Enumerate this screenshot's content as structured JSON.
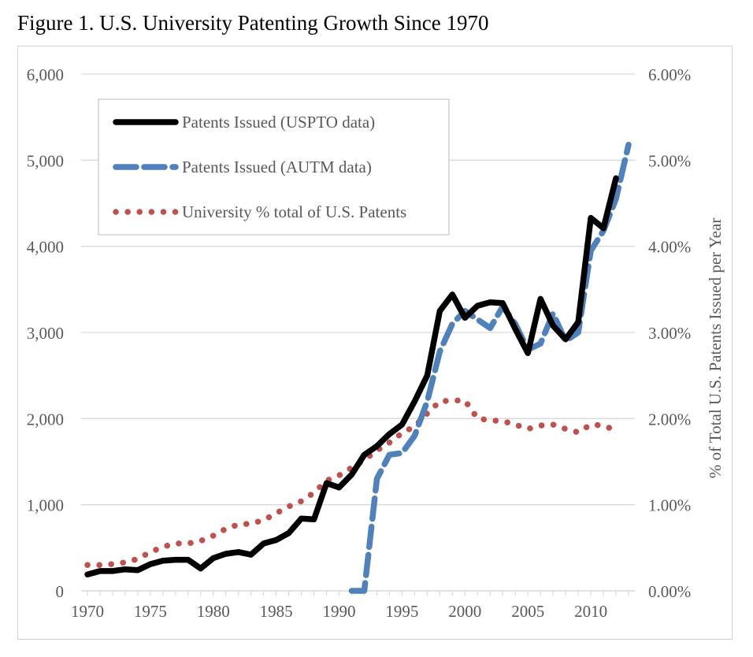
{
  "figure_title": "Figure 1. U.S. University Patenting Growth Since 1970",
  "colors": {
    "uspto": "#000000",
    "autm": "#4f81bd",
    "pct": "#c0504d",
    "grid": "#d9d9d9",
    "axis_text": "#595959"
  },
  "chart_data": {
    "type": "line",
    "title": "Figure 1. U.S. University Patenting Growth Since 1970",
    "xlabel": "",
    "ylabel": "",
    "y2label": "% of Total U.S. Patents Issued per Year",
    "xlim": [
      1969.5,
      2013.5
    ],
    "ylim": [
      0,
      6000
    ],
    "y2lim": [
      0,
      6
    ],
    "x_ticks": [
      {
        "value": 1970,
        "label": "1970"
      },
      {
        "value": 1975,
        "label": "1975"
      },
      {
        "value": 1980,
        "label": "1980"
      },
      {
        "value": 1985,
        "label": "1985"
      },
      {
        "value": 1990,
        "label": "1990"
      },
      {
        "value": 1995,
        "label": "1995"
      },
      {
        "value": 2000,
        "label": "2000"
      },
      {
        "value": 2005,
        "label": "2005"
      },
      {
        "value": 2010,
        "label": "2010"
      }
    ],
    "y_ticks": [
      {
        "value": 0,
        "label": "0"
      },
      {
        "value": 1000,
        "label": "1,000"
      },
      {
        "value": 2000,
        "label": "2,000"
      },
      {
        "value": 3000,
        "label": "3,000"
      },
      {
        "value": 4000,
        "label": "4,000"
      },
      {
        "value": 5000,
        "label": "5,000"
      },
      {
        "value": 6000,
        "label": "6,000"
      }
    ],
    "y2_ticks": [
      {
        "value": 0,
        "label": "0.00%"
      },
      {
        "value": 1,
        "label": "1.00%"
      },
      {
        "value": 2,
        "label": "2.00%"
      },
      {
        "value": 3,
        "label": "3.00%"
      },
      {
        "value": 4,
        "label": "4.00%"
      },
      {
        "value": 5,
        "label": "5.00%"
      },
      {
        "value": 6,
        "label": "6.00%"
      }
    ],
    "grid": true,
    "legend_position": "top-left",
    "series": [
      {
        "name": "Patents Issued (USPTO data)",
        "axis": "left",
        "style": "solid",
        "x": [
          1970,
          1971,
          1972,
          1973,
          1974,
          1975,
          1976,
          1977,
          1978,
          1979,
          1980,
          1981,
          1982,
          1983,
          1984,
          1985,
          1986,
          1987,
          1988,
          1989,
          1990,
          1991,
          1992,
          1993,
          1994,
          1995,
          1996,
          1997,
          1998,
          1999,
          2000,
          2001,
          2002,
          2003,
          2004,
          2005,
          2006,
          2007,
          2008,
          2009,
          2010,
          2011,
          2012
        ],
        "values": [
          190,
          230,
          230,
          250,
          240,
          310,
          350,
          360,
          360,
          260,
          380,
          430,
          450,
          420,
          550,
          590,
          670,
          840,
          830,
          1250,
          1200,
          1350,
          1580,
          1680,
          1820,
          1930,
          2200,
          2500,
          3250,
          3440,
          3170,
          3310,
          3350,
          3340,
          3040,
          2760,
          3390,
          3080,
          2920,
          3120,
          4330,
          4210,
          4790
        ]
      },
      {
        "name": "Patents Issued (AUTM data)",
        "axis": "left",
        "style": "dashed",
        "x": [
          1991,
          1992,
          1993,
          1994,
          1995,
          1996,
          1997,
          1998,
          1999,
          2000,
          2001,
          2002,
          2003,
          2004,
          2005,
          2006,
          2007,
          2008,
          2009,
          2010,
          2011,
          2012,
          2013
        ],
        "values": [
          0,
          0,
          1300,
          1580,
          1600,
          1800,
          2200,
          2780,
          3100,
          3250,
          3150,
          3050,
          3300,
          3100,
          2800,
          2870,
          3220,
          2900,
          3000,
          3950,
          4180,
          4550,
          5180
        ]
      },
      {
        "name": "University % total of U.S. Patents",
        "axis": "right",
        "style": "dotted",
        "x": [
          1970,
          1971,
          1972,
          1973,
          1974,
          1975,
          1976,
          1977,
          1978,
          1979,
          1980,
          1981,
          1982,
          1983,
          1984,
          1985,
          1986,
          1987,
          1988,
          1989,
          1990,
          1991,
          1992,
          1993,
          1994,
          1995,
          1996,
          1997,
          1998,
          1999,
          2000,
          2001,
          2002,
          2003,
          2004,
          2005,
          2006,
          2007,
          2008,
          2009,
          2010,
          2011,
          2012
        ],
        "values": [
          0.3,
          0.3,
          0.31,
          0.33,
          0.37,
          0.45,
          0.51,
          0.55,
          0.55,
          0.58,
          0.64,
          0.72,
          0.77,
          0.78,
          0.82,
          0.9,
          0.98,
          1.04,
          1.14,
          1.28,
          1.34,
          1.43,
          1.52,
          1.63,
          1.72,
          1.83,
          1.91,
          2.06,
          2.2,
          2.21,
          2.21,
          2.0,
          1.98,
          1.97,
          1.93,
          1.88,
          1.92,
          1.93,
          1.88,
          1.84,
          1.93,
          1.92,
          1.86
        ]
      }
    ]
  }
}
